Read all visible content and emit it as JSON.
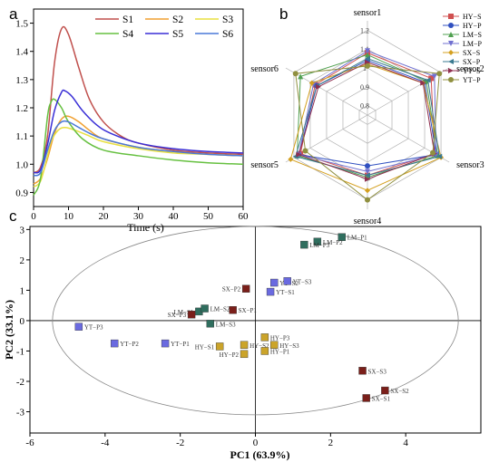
{
  "chart_data": [
    {
      "panel": "a",
      "type": "line",
      "xlabel": "Time (s)",
      "ylabel": "",
      "xlim": [
        0,
        60
      ],
      "ylim": [
        0.85,
        1.55
      ],
      "xticks": [
        0,
        10,
        20,
        30,
        40,
        50,
        60
      ],
      "yticks": [
        0.9,
        1.0,
        1.1,
        1.2,
        1.3,
        1.4,
        1.5
      ],
      "legend_position": "top-right",
      "series": [
        {
          "name": "S1",
          "color": "#c0504d",
          "points": [
            [
              0,
              0.97
            ],
            [
              2,
              0.99
            ],
            [
              4,
              1.1
            ],
            [
              6,
              1.36
            ],
            [
              8,
              1.48
            ],
            [
              10,
              1.46
            ],
            [
              13,
              1.34
            ],
            [
              16,
              1.23
            ],
            [
              20,
              1.15
            ],
            [
              25,
              1.1
            ],
            [
              30,
              1.075
            ],
            [
              40,
              1.05
            ],
            [
              50,
              1.04
            ],
            [
              60,
              1.035
            ]
          ]
        },
        {
          "name": "S2",
          "color": "#f0a030",
          "points": [
            [
              0,
              0.93
            ],
            [
              2,
              0.95
            ],
            [
              4,
              1.02
            ],
            [
              6,
              1.11
            ],
            [
              8,
              1.16
            ],
            [
              10,
              1.17
            ],
            [
              13,
              1.15
            ],
            [
              16,
              1.12
            ],
            [
              20,
              1.09
            ],
            [
              30,
              1.06
            ],
            [
              40,
              1.045
            ],
            [
              50,
              1.035
            ],
            [
              60,
              1.03
            ]
          ]
        },
        {
          "name": "S3",
          "color": "#e8e040",
          "points": [
            [
              0,
              0.92
            ],
            [
              2,
              0.94
            ],
            [
              4,
              1.03
            ],
            [
              5,
              1.08
            ],
            [
              7,
              1.12
            ],
            [
              9,
              1.13
            ],
            [
              12,
              1.12
            ],
            [
              16,
              1.1
            ],
            [
              20,
              1.08
            ],
            [
              30,
              1.055
            ],
            [
              40,
              1.04
            ],
            [
              50,
              1.035
            ],
            [
              60,
              1.03
            ]
          ]
        },
        {
          "name": "S4",
          "color": "#66c040",
          "points": [
            [
              0,
              0.89
            ],
            [
              2,
              0.95
            ],
            [
              4,
              1.17
            ],
            [
              5,
              1.22
            ],
            [
              6,
              1.23
            ],
            [
              8,
              1.2
            ],
            [
              10,
              1.15
            ],
            [
              14,
              1.09
            ],
            [
              20,
              1.05
            ],
            [
              30,
              1.03
            ],
            [
              40,
              1.015
            ],
            [
              50,
              1.005
            ],
            [
              60,
              1.0
            ]
          ]
        },
        {
          "name": "S5",
          "color": "#3a2fd6",
          "points": [
            [
              0,
              0.97
            ],
            [
              2,
              0.98
            ],
            [
              4,
              1.07
            ],
            [
              6,
              1.19
            ],
            [
              8,
              1.255
            ],
            [
              9,
              1.26
            ],
            [
              11,
              1.24
            ],
            [
              14,
              1.19
            ],
            [
              18,
              1.14
            ],
            [
              22,
              1.11
            ],
            [
              30,
              1.075
            ],
            [
              40,
              1.055
            ],
            [
              50,
              1.045
            ],
            [
              60,
              1.04
            ]
          ]
        },
        {
          "name": "S6",
          "color": "#4a78d8",
          "points": [
            [
              0,
              0.96
            ],
            [
              2,
              0.97
            ],
            [
              4,
              1.05
            ],
            [
              6,
              1.12
            ],
            [
              8,
              1.15
            ],
            [
              10,
              1.15
            ],
            [
              13,
              1.13
            ],
            [
              16,
              1.11
            ],
            [
              20,
              1.09
            ],
            [
              30,
              1.06
            ],
            [
              40,
              1.045
            ],
            [
              50,
              1.035
            ],
            [
              60,
              1.03
            ]
          ]
        }
      ]
    },
    {
      "panel": "b",
      "type": "radar",
      "axes": [
        "sensor1",
        "sensor2",
        "sensor3",
        "sensor4",
        "sensor5",
        "sensor6"
      ],
      "r_ticks": [
        0.8,
        0.9,
        1.0,
        1.1,
        1.2
      ],
      "r_tick_labels": [
        "0.8",
        "0.9",
        "1",
        "1.1",
        "1.2"
      ],
      "r_range": [
        0.75,
        1.25
      ],
      "legend_position": "top-right",
      "series": [
        {
          "name": "HY−S",
          "color": "#d05050",
          "marker": "square",
          "values": [
            1.08,
            1.14,
            1.16,
            1.07,
            1.16,
            1.07
          ]
        },
        {
          "name": "HY−P",
          "color": "#3050c0",
          "marker": "circle",
          "values": [
            1.04,
            1.1,
            1.17,
            1.02,
            1.17,
            1.06
          ]
        },
        {
          "name": "LM−S",
          "color": "#50a050",
          "marker": "triangle-up",
          "values": [
            1.07,
            1.11,
            1.18,
            1.08,
            1.18,
            1.16
          ]
        },
        {
          "name": "LM−P",
          "color": "#7070d0",
          "marker": "triangle-down",
          "values": [
            1.09,
            1.16,
            1.17,
            1.05,
            1.17,
            1.08
          ]
        },
        {
          "name": "SX−S",
          "color": "#d4a020",
          "marker": "diamond",
          "values": [
            1.02,
            1.09,
            1.2,
            1.15,
            1.22,
            1.09
          ]
        },
        {
          "name": "SX−P",
          "color": "#3a7a90",
          "marker": "triangle-left",
          "values": [
            1.05,
            1.12,
            1.19,
            1.07,
            1.19,
            1.06
          ]
        },
        {
          "name": "YT−S",
          "color": "#903050",
          "marker": "triangle-right",
          "values": [
            1.03,
            1.09,
            1.16,
            1.09,
            1.17,
            1.05
          ]
        },
        {
          "name": "YT−P",
          "color": "#909040",
          "marker": "circle",
          "values": [
            1.01,
            1.19,
            1.15,
            1.2,
            1.13,
            1.19
          ]
        }
      ]
    },
    {
      "panel": "c",
      "type": "scatter",
      "xlabel": "PC1 (63.9%)",
      "ylabel": "PC2 (33.1%)",
      "xlim": [
        -6,
        6
      ],
      "ylim": [
        -3.7,
        3.1
      ],
      "xticks": [
        -6,
        -4,
        -2,
        0,
        2,
        4
      ],
      "yticks": [
        -3,
        -2,
        -1,
        0,
        1,
        2,
        3
      ],
      "ellipse": {
        "cx": 0,
        "cy": 0,
        "rx": 5.4,
        "ry": 3.1
      },
      "groups": {
        "LM": "#2f6e5e",
        "YT": "#6a6ae0",
        "SX": "#7a1f1a",
        "HY": "#cba42a"
      },
      "points": [
        {
          "label": "LM−P1",
          "group": "LM",
          "x": 2.3,
          "y": 2.75
        },
        {
          "label": "LM−P2",
          "group": "LM",
          "x": 1.65,
          "y": 2.6
        },
        {
          "label": "LM−P3",
          "group": "LM",
          "x": 1.3,
          "y": 2.5
        },
        {
          "label": "LM−S1",
          "group": "LM",
          "x": -1.5,
          "y": 0.3
        },
        {
          "label": "LM−S2",
          "group": "LM",
          "x": -1.35,
          "y": 0.4
        },
        {
          "label": "LM−S3",
          "group": "LM",
          "x": -1.2,
          "y": -0.1
        },
        {
          "label": "YT−S1",
          "group": "YT",
          "x": 0.4,
          "y": 0.95
        },
        {
          "label": "YT−S2",
          "group": "YT",
          "x": 0.5,
          "y": 1.25
        },
        {
          "label": "YT−S3",
          "group": "YT",
          "x": 0.85,
          "y": 1.3
        },
        {
          "label": "YT−P1",
          "group": "YT",
          "x": -2.4,
          "y": -0.75
        },
        {
          "label": "YT−P2",
          "group": "YT",
          "x": -3.75,
          "y": -0.75
        },
        {
          "label": "YT−P3",
          "group": "YT",
          "x": -4.7,
          "y": -0.2
        },
        {
          "label": "SX−P1",
          "group": "SX",
          "x": -0.6,
          "y": 0.35
        },
        {
          "label": "SX−P2",
          "group": "SX",
          "x": -0.25,
          "y": 1.05
        },
        {
          "label": "SX−P3",
          "group": "SX",
          "x": -1.7,
          "y": 0.2
        },
        {
          "label": "SX−S1",
          "group": "SX",
          "x": 2.95,
          "y": -2.55
        },
        {
          "label": "SX−S2",
          "group": "SX",
          "x": 3.45,
          "y": -2.3
        },
        {
          "label": "SX−S3",
          "group": "SX",
          "x": 2.85,
          "y": -1.65
        },
        {
          "label": "HY−S1",
          "group": "HY",
          "x": -0.95,
          "y": -0.85
        },
        {
          "label": "HY−S2",
          "group": "HY",
          "x": -0.3,
          "y": -0.8
        },
        {
          "label": "HY−S3",
          "group": "HY",
          "x": 0.5,
          "y": -0.8
        },
        {
          "label": "HY−P1",
          "group": "HY",
          "x": 0.25,
          "y": -1.0
        },
        {
          "label": "HY−P2",
          "group": "HY",
          "x": -0.3,
          "y": -1.1
        },
        {
          "label": "HY−P3",
          "group": "HY",
          "x": 0.25,
          "y": -0.55
        }
      ]
    }
  ],
  "panels": {
    "a": "a",
    "b": "b",
    "c": "c"
  }
}
